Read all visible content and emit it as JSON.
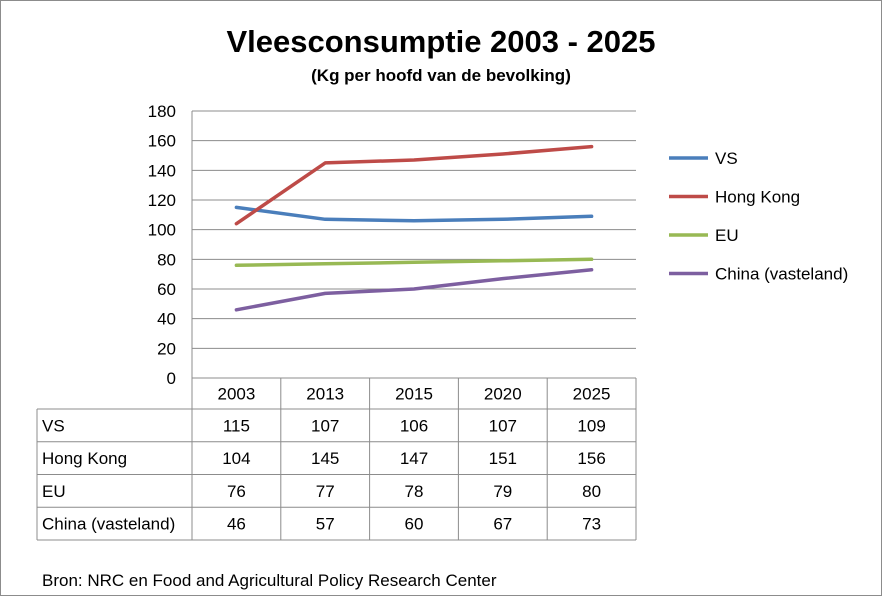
{
  "chart_data": {
    "type": "line",
    "title": "Vleesconsumptie 2003 - 2025",
    "subtitle": "(Kg per hoofd van de bevolking)",
    "categories": [
      "2003",
      "2013",
      "2015",
      "2020",
      "2025"
    ],
    "ylim": [
      0,
      180
    ],
    "yticks": [
      0,
      20,
      40,
      60,
      80,
      100,
      120,
      140,
      160,
      180
    ],
    "grid": true,
    "legend_position": "right",
    "data_table": true,
    "series": [
      {
        "name": "VS",
        "color": "#4a7ebb",
        "values": [
          115,
          107,
          106,
          107,
          109
        ]
      },
      {
        "name": "Hong Kong",
        "color": "#be4b48",
        "values": [
          104,
          145,
          147,
          151,
          156
        ]
      },
      {
        "name": "EU",
        "color": "#98b954",
        "values": [
          76,
          77,
          78,
          79,
          80
        ]
      },
      {
        "name": "China (vasteland)",
        "color": "#7d5fa0",
        "values": [
          46,
          57,
          60,
          67,
          73
        ]
      }
    ],
    "source": "Bron: NRC en Food and Agricultural Policy Research Center"
  }
}
